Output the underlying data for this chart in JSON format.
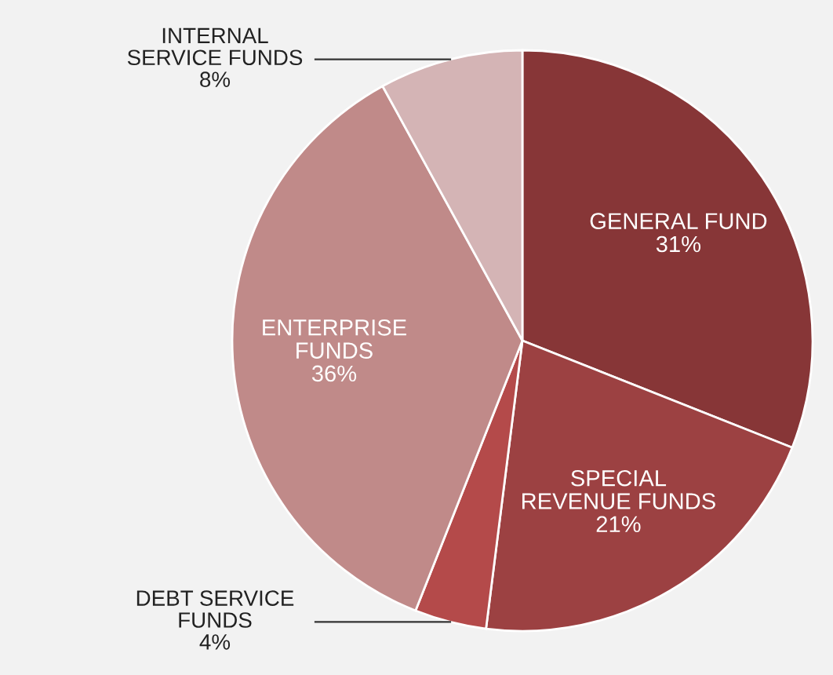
{
  "chart_data": {
    "type": "pie",
    "categories": [
      "GENERAL FUND",
      "SPECIAL\nREVENUE FUNDS",
      "DEBT SERVICE\nFUNDS",
      "ENTERPRISE\nFUNDS",
      "INTERNAL\nSERVICE FUNDS"
    ],
    "values": [
      31,
      21,
      4,
      36,
      8
    ],
    "value_labels": [
      "31%",
      "21%",
      "4%",
      "36%",
      "8%"
    ],
    "colors": [
      "#873637",
      "#9c4142",
      "#b44a4a",
      "#c08a89",
      "#d4b4b5"
    ]
  }
}
